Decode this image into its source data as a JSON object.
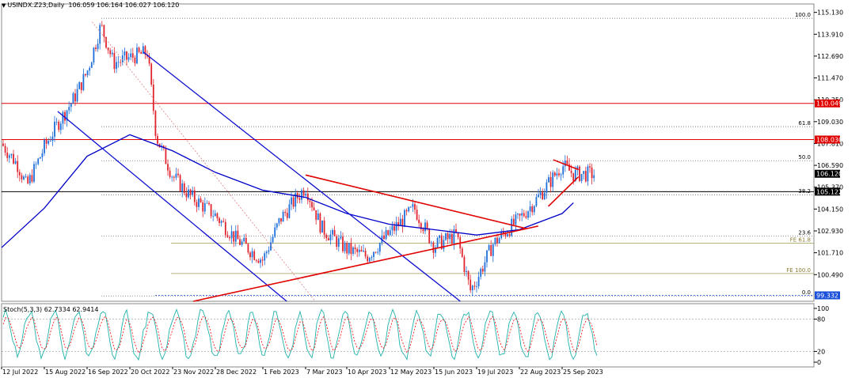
{
  "header": {
    "symbol_text": "USINDX.Z23,Daily",
    "ohlc_text": "106.059 106.164 106.027 106.120"
  },
  "stochastic": {
    "label": "Stoch(5,3,3) 62.7334 62.9414",
    "levels": [
      100,
      80,
      20,
      0
    ],
    "k_color": "#20b2aa",
    "d_color": "#ff0000"
  },
  "colors": {
    "up_candle": "#1e6fd9",
    "down_candle": "#e0242e",
    "ma_line": "#0000c8",
    "channel": "#1010d0",
    "triangle": "#e00000",
    "horizontal_red": "#e00000",
    "horizontal_black": "#000000",
    "fe_line": "#a09850",
    "grid": "#c8c8c8"
  },
  "chart_data": {
    "type": "candlestick",
    "title": "USINDX.Z23,Daily",
    "xlabel": "",
    "ylabel": "",
    "ylim": [
      99.0,
      115.6
    ],
    "y_ticks": [
      "115.130",
      "113.910",
      "112.690",
      "111.470",
      "110.250",
      "109.030",
      "107.810",
      "106.590",
      "105.370",
      "104.150",
      "102.930",
      "101.710",
      "100.490"
    ],
    "x_ticks": [
      "12 Jul 2022",
      "15 Aug 2022",
      "16 Sep 2022",
      "20 Oct 2022",
      "23 Nov 2022",
      "28 Dec 2022",
      "1 Feb 2023",
      "7 Mar 2023",
      "10 Apr 2023",
      "12 May 2023",
      "15 Jun 2023",
      "19 Jul 2023",
      "22 Aug 2023",
      "25 Sep 2023"
    ],
    "current_price": "106.120",
    "price_labels": [
      {
        "value": "110.049",
        "color": "#e00000"
      },
      {
        "value": "108.030",
        "color": "#e00000"
      },
      {
        "value": "106.120",
        "color": "#000000"
      },
      {
        "value": "105.122",
        "color": "#000000"
      },
      {
        "value": "99.332",
        "color": "#1a4fd9"
      }
    ],
    "fibonacci": [
      {
        "label": "100.0",
        "value": 114.8
      },
      {
        "label": "61.8",
        "value": 108.75
      },
      {
        "label": "50.0",
        "value": 106.85
      },
      {
        "label": "38.2",
        "value": 104.95
      },
      {
        "label": "23.6",
        "value": 102.65
      },
      {
        "label": "0.0",
        "value": 99.3
      }
    ],
    "fibonacci_expansion": [
      {
        "label": "FE 61.8",
        "value": 102.25
      },
      {
        "label": "FE 100.0",
        "value": 100.55
      }
    ],
    "series": [
      {
        "name": "Close",
        "values": [
          {
            "date": "2022-07-12",
            "close": 107.8
          },
          {
            "date": "2022-07-25",
            "close": 106.6
          },
          {
            "date": "2022-08-01",
            "close": 105.4
          },
          {
            "date": "2022-08-15",
            "close": 107.6
          },
          {
            "date": "2022-08-25",
            "close": 108.9
          },
          {
            "date": "2022-09-06",
            "close": 110.3
          },
          {
            "date": "2022-09-16",
            "close": 111.8
          },
          {
            "date": "2022-09-27",
            "close": 114.4
          },
          {
            "date": "2022-10-07",
            "close": 112.3
          },
          {
            "date": "2022-10-20",
            "close": 112.6
          },
          {
            "date": "2022-11-03",
            "close": 112.9
          },
          {
            "date": "2022-11-10",
            "close": 108.2
          },
          {
            "date": "2022-11-23",
            "close": 106.0
          },
          {
            "date": "2022-12-07",
            "close": 104.9
          },
          {
            "date": "2022-12-28",
            "close": 103.8
          },
          {
            "date": "2023-01-12",
            "close": 102.5
          },
          {
            "date": "2023-02-01",
            "close": 101.3
          },
          {
            "date": "2023-02-15",
            "close": 103.6
          },
          {
            "date": "2023-03-07",
            "close": 105.4
          },
          {
            "date": "2023-03-20",
            "close": 103.1
          },
          {
            "date": "2023-04-10",
            "close": 101.9
          },
          {
            "date": "2023-04-25",
            "close": 101.5
          },
          {
            "date": "2023-05-12",
            "close": 102.8
          },
          {
            "date": "2023-05-31",
            "close": 104.2
          },
          {
            "date": "2023-06-15",
            "close": 102.1
          },
          {
            "date": "2023-07-03",
            "close": 102.7
          },
          {
            "date": "2023-07-14",
            "close": 99.6
          },
          {
            "date": "2023-07-19",
            "close": 100.2
          },
          {
            "date": "2023-08-01",
            "close": 102.2
          },
          {
            "date": "2023-08-22",
            "close": 103.6
          },
          {
            "date": "2023-09-06",
            "close": 104.8
          },
          {
            "date": "2023-09-25",
            "close": 106.6
          },
          {
            "date": "2023-10-04",
            "close": 106.1
          }
        ]
      },
      {
        "name": "Moving Average",
        "values": [
          {
            "date": "2022-07-12",
            "value": 102.0
          },
          {
            "date": "2022-08-15",
            "value": 104.2
          },
          {
            "date": "2022-09-16",
            "value": 107.1
          },
          {
            "date": "2022-10-20",
            "value": 108.3
          },
          {
            "date": "2022-11-23",
            "value": 107.4
          },
          {
            "date": "2022-12-28",
            "value": 106.2
          },
          {
            "date": "2023-02-01",
            "value": 105.2
          },
          {
            "date": "2023-03-07",
            "value": 104.8
          },
          {
            "date": "2023-04-10",
            "value": 103.9
          },
          {
            "date": "2023-05-12",
            "value": 103.3
          },
          {
            "date": "2023-06-15",
            "value": 103.0
          },
          {
            "date": "2023-07-19",
            "value": 102.7
          },
          {
            "date": "2023-08-22",
            "value": 103.0
          },
          {
            "date": "2023-09-25",
            "value": 103.9
          },
          {
            "date": "2023-10-04",
            "value": 104.5
          }
        ]
      }
    ]
  }
}
